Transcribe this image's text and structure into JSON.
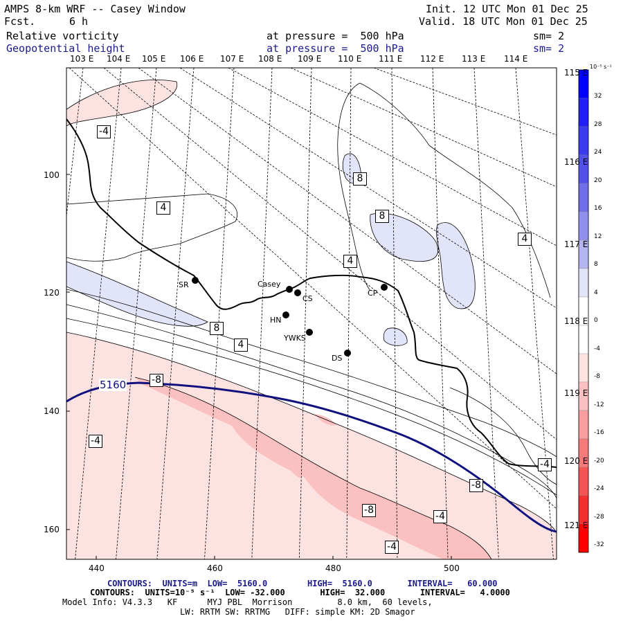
{
  "header": {
    "title": "AMPS 8-km WRF -- Casey Window",
    "fcst_label": "Fcst.",
    "fcst_value": "6 h",
    "init": "Init. 12 UTC Mon 01 Dec 25",
    "valid": "Valid. 18 UTC Mon 01 Dec 25",
    "field1_name": "Relative vorticity",
    "field1_level": "at pressure =  500 hPa",
    "field1_sm": "sm= 2",
    "field2_name": "Geopotential height",
    "field2_level": "at pressure =  500 hPa",
    "field2_sm": "sm= 2"
  },
  "lon_top": [
    "103 E",
    "104 E",
    "105 E",
    "106 E",
    "107 E",
    "108 E",
    "109 E",
    "110 E",
    "111 E",
    "112 E",
    "113 E",
    "114 E"
  ],
  "lon_right": [
    "115 E",
    "116 E",
    "117 E",
    "118 E",
    "119 E",
    "120 E",
    "121 E"
  ],
  "y_ticks": [
    "100",
    "120",
    "140",
    "160"
  ],
  "x_ticks": [
    "440",
    "460",
    "480",
    "500"
  ],
  "colorbar": {
    "unit": "10⁻⁵ s⁻¹",
    "labels": [
      "32",
      "28",
      "24",
      "20",
      "16",
      "12",
      "8",
      "4",
      "0",
      "-4",
      "-8",
      "-12",
      "-16",
      "-20",
      "-24",
      "-28",
      "-32"
    ],
    "colors": [
      "#0000ff",
      "#2020f4",
      "#3a3aee",
      "#5252e8",
      "#6e6ee8",
      "#9090ec",
      "#b4b4f0",
      "#e2e4fa",
      "#ffffff",
      "#ffffff",
      "#fde2e2",
      "#fbc0c0",
      "#f89e9e",
      "#f57a7a",
      "#f35454",
      "#f23030",
      "#ff0000"
    ]
  },
  "stations": [
    {
      "name": "SR"
    },
    {
      "name": "Casey"
    },
    {
      "name": "CS"
    },
    {
      "name": "CP"
    },
    {
      "name": "HN"
    },
    {
      "name": "YWKS"
    },
    {
      "name": "DS"
    }
  ],
  "contour_labels": [
    "-4",
    "4",
    "8",
    "8",
    "4",
    "4",
    "8",
    "4",
    "-8",
    "-4",
    "-4",
    "-8",
    "-8",
    "-4",
    "-4"
  ],
  "height_label": "5160",
  "footer": {
    "line1": "CONTOURS:  UNITS=m  LOW=  5160.0        HIGH=  5160.0       INTERVAL=   60.000",
    "line2": "CONTOURS:  UNITS=10⁻⁵ s⁻¹  LOW= -32.000       HIGH=  32.000       INTERVAL=   4.0000",
    "line3": "Model Info: V4.3.3   KF      MYJ PBL  Morrison         8.0 km,  60 levels,",
    "line4": "LW: RRTM SW: RRTMG   DIFF: simple KM: 2D Smagor"
  },
  "colors": {
    "height_contour": "#10107e",
    "positive_fill": "#e2e4fa",
    "negative_fill_light": "#fde2e2",
    "negative_fill_mid": "#fbc0c0",
    "negative_fill_dark": "#f89e9e"
  }
}
